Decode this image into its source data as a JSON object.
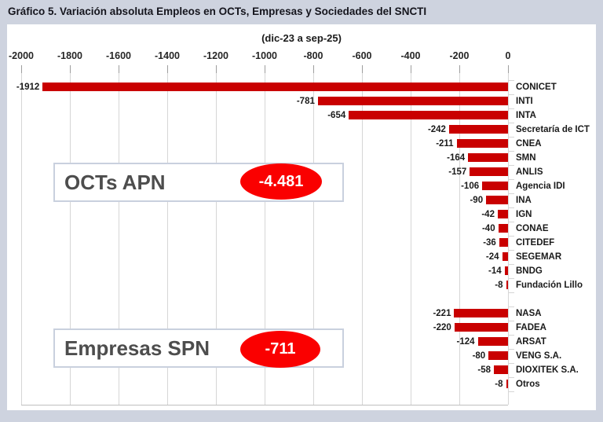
{
  "page": {
    "title": "Gráfico 5. Variación absoluta Empleos en OCTs, Empresas y Sociedades del SNCTI",
    "subtitle": "(dic-23 a sep-25)"
  },
  "colors": {
    "background": "#ced3df",
    "panel": "#ffffff",
    "bar": "#c90000",
    "total_ellipse": "#fa0000",
    "gridline": "#d6d6d6",
    "text": "#1a1a1a",
    "group_text": "#4d4d4d",
    "box_border": "#c9d0de"
  },
  "chart_data": {
    "type": "bar",
    "orientation": "horizontal",
    "title": "Gráfico 5. Variación absoluta Empleos en OCTs, Empresas y Sociedades del SNCTI",
    "subtitle": "(dic-23 a sep-25)",
    "xlabel": "",
    "ylabel": "",
    "xlim": [
      -2000,
      0
    ],
    "x_ticks": [
      -2000,
      -1800,
      -1600,
      -1400,
      -1200,
      -1000,
      -800,
      -600,
      -400,
      -200,
      0
    ],
    "grid": true,
    "legend": false,
    "categories": [
      "CONICET",
      "INTI",
      "INTA",
      "Secretaría de ICT",
      "CNEA",
      "SMN",
      "ANLIS",
      "Agencia IDI",
      "INA",
      "IGN",
      "CONAE",
      "CITEDEF",
      "SEGEMAR",
      "BNDG",
      "Fundación Lillo",
      "NASA",
      "FADEA",
      "ARSAT",
      "VENG S.A.",
      "DIOXITEK S.A.",
      "Otros"
    ],
    "values": [
      -1912,
      -781,
      -654,
      -242,
      -211,
      -164,
      -157,
      -106,
      -90,
      -42,
      -40,
      -36,
      -24,
      -14,
      -8,
      -221,
      -220,
      -124,
      -80,
      -58,
      -8
    ],
    "groups": [
      {
        "name": "OCTs APN",
        "total": "-4.481",
        "items": [
          {
            "label": "CONICET",
            "value": -1912
          },
          {
            "label": "INTI",
            "value": -781
          },
          {
            "label": "INTA",
            "value": -654
          },
          {
            "label": "Secretaría de ICT",
            "value": -242
          },
          {
            "label": "CNEA",
            "value": -211
          },
          {
            "label": "SMN",
            "value": -164
          },
          {
            "label": "ANLIS",
            "value": -157
          },
          {
            "label": "Agencia IDI",
            "value": -106
          },
          {
            "label": "INA",
            "value": -90
          },
          {
            "label": "IGN",
            "value": -42
          },
          {
            "label": "CONAE",
            "value": -40
          },
          {
            "label": "CITEDEF",
            "value": -36
          },
          {
            "label": "SEGEMAR",
            "value": -24
          },
          {
            "label": "BNDG",
            "value": -14
          },
          {
            "label": "Fundación Lillo",
            "value": -8
          }
        ]
      },
      {
        "name": "Empresas SPN",
        "total": "-711",
        "items": [
          {
            "label": "NASA",
            "value": -221
          },
          {
            "label": "FADEA",
            "value": -220
          },
          {
            "label": "ARSAT",
            "value": -124
          },
          {
            "label": "VENG S.A.",
            "value": -80
          },
          {
            "label": "DIOXITEK S.A.",
            "value": -58
          },
          {
            "label": "Otros",
            "value": -8
          }
        ]
      }
    ]
  }
}
